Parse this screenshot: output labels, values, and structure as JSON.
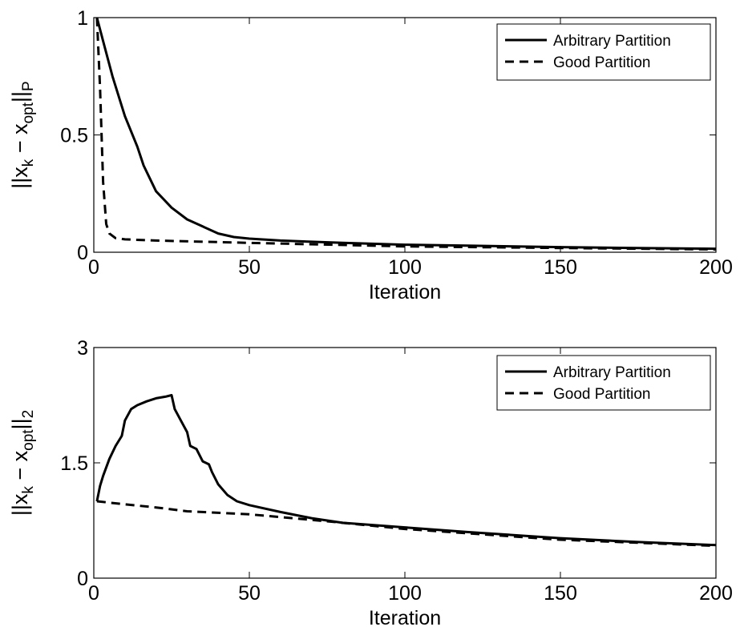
{
  "chart_data": [
    {
      "type": "line",
      "xlabel": "Iteration",
      "ylabel": {
        "main1": "||x",
        "sub1": "k",
        "main2": " − x",
        "sub2": "opt",
        "main3": "||",
        "sub3": "P"
      },
      "xlim": [
        0,
        200
      ],
      "ylim": [
        0,
        1
      ],
      "xticks": [
        0,
        50,
        100,
        150,
        200
      ],
      "yticks": [
        0,
        0.5,
        1
      ],
      "xtick_labels": [
        "0",
        "50",
        "100",
        "150",
        "200"
      ],
      "ytick_labels": [
        "0",
        "0.5",
        "1"
      ],
      "grid": false,
      "legend_position": "top-right",
      "series": [
        {
          "name": "Arbitrary Partition",
          "style": "solid",
          "color": "#000000",
          "x": [
            1,
            3,
            6,
            10,
            14,
            16,
            20,
            25,
            30,
            35,
            40,
            45,
            50,
            60,
            80,
            100,
            120,
            150,
            175,
            200
          ],
          "y": [
            1.0,
            0.9,
            0.75,
            0.58,
            0.45,
            0.37,
            0.26,
            0.19,
            0.14,
            0.11,
            0.08,
            0.065,
            0.058,
            0.05,
            0.04,
            0.032,
            0.028,
            0.022,
            0.018,
            0.015
          ]
        },
        {
          "name": "Good Partition",
          "style": "dashed",
          "color": "#000000",
          "x": [
            1,
            2,
            3,
            4,
            5,
            7,
            10,
            20,
            50,
            100,
            150,
            200
          ],
          "y": [
            1.0,
            0.7,
            0.3,
            0.12,
            0.08,
            0.06,
            0.055,
            0.05,
            0.04,
            0.025,
            0.018,
            0.012
          ]
        }
      ]
    },
    {
      "type": "line",
      "xlabel": "Iteration",
      "ylabel": {
        "main1": "||x",
        "sub1": "k",
        "main2": " − x",
        "sub2": "opt",
        "main3": "||",
        "sub3": "2"
      },
      "xlim": [
        0,
        200
      ],
      "ylim": [
        0,
        3
      ],
      "xticks": [
        0,
        50,
        100,
        150,
        200
      ],
      "yticks": [
        0,
        1.5,
        3
      ],
      "xtick_labels": [
        "0",
        "50",
        "100",
        "150",
        "200"
      ],
      "ytick_labels": [
        "0",
        "1.5",
        "3"
      ],
      "grid": false,
      "legend_position": "top-right",
      "series": [
        {
          "name": "Arbitrary Partition",
          "style": "solid",
          "color": "#000000",
          "x": [
            1,
            2,
            3,
            5,
            7,
            9,
            10,
            12,
            14,
            17,
            20,
            23,
            25,
            26,
            28,
            30,
            31,
            33,
            35,
            37,
            38,
            40,
            43,
            46,
            50,
            60,
            70,
            80,
            100,
            120,
            150,
            175,
            200
          ],
          "y": [
            1.0,
            1.2,
            1.33,
            1.55,
            1.72,
            1.85,
            2.05,
            2.2,
            2.25,
            2.3,
            2.34,
            2.36,
            2.38,
            2.2,
            2.05,
            1.9,
            1.72,
            1.68,
            1.52,
            1.48,
            1.38,
            1.22,
            1.08,
            1.0,
            0.95,
            0.86,
            0.78,
            0.72,
            0.66,
            0.6,
            0.52,
            0.47,
            0.43
          ]
        },
        {
          "name": "Good Partition",
          "style": "dashed",
          "color": "#000000",
          "x": [
            1,
            10,
            20,
            30,
            40,
            50,
            75,
            100,
            125,
            150,
            175,
            200
          ],
          "y": [
            1.0,
            0.96,
            0.92,
            0.87,
            0.85,
            0.83,
            0.74,
            0.64,
            0.57,
            0.5,
            0.46,
            0.42
          ]
        }
      ]
    }
  ]
}
